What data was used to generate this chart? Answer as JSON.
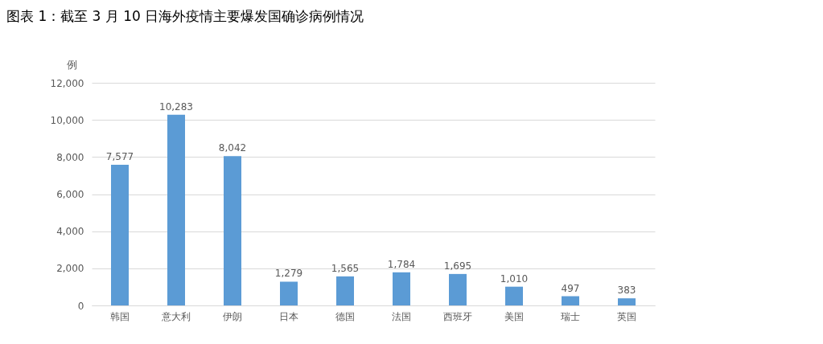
{
  "chart_data": {
    "type": "bar",
    "title": "图表 1：截至 3 月 10 日海外疫情主要爆发国确诊病例情况",
    "ylabel": "例",
    "categories": [
      "韩国",
      "意大利",
      "伊朗",
      "日本",
      "德国",
      "法国",
      "西班牙",
      "美国",
      "瑞士",
      "英国"
    ],
    "values": [
      7577,
      10283,
      8042,
      1279,
      1565,
      1784,
      1695,
      1010,
      497,
      383
    ],
    "value_labels": [
      "7,577",
      "10,283",
      "8,042",
      "1,279",
      "1,565",
      "1,784",
      "1,695",
      "1,010",
      "497",
      "383"
    ],
    "color": "#5b9bd5",
    "ylim": [
      0,
      12000
    ],
    "yticks": [
      0,
      {
        "value": 2000,
        "label": "2,000"
      },
      {
        "value": 4000,
        "label": "4,000"
      },
      {
        "value": 6000,
        "label": "6,000"
      },
      {
        "value": 8000,
        "label": "8,000"
      },
      {
        "value": 10000,
        "label": "10,000"
      },
      {
        "value": 12000,
        "label": "12,000"
      }
    ],
    "grid": "y"
  }
}
